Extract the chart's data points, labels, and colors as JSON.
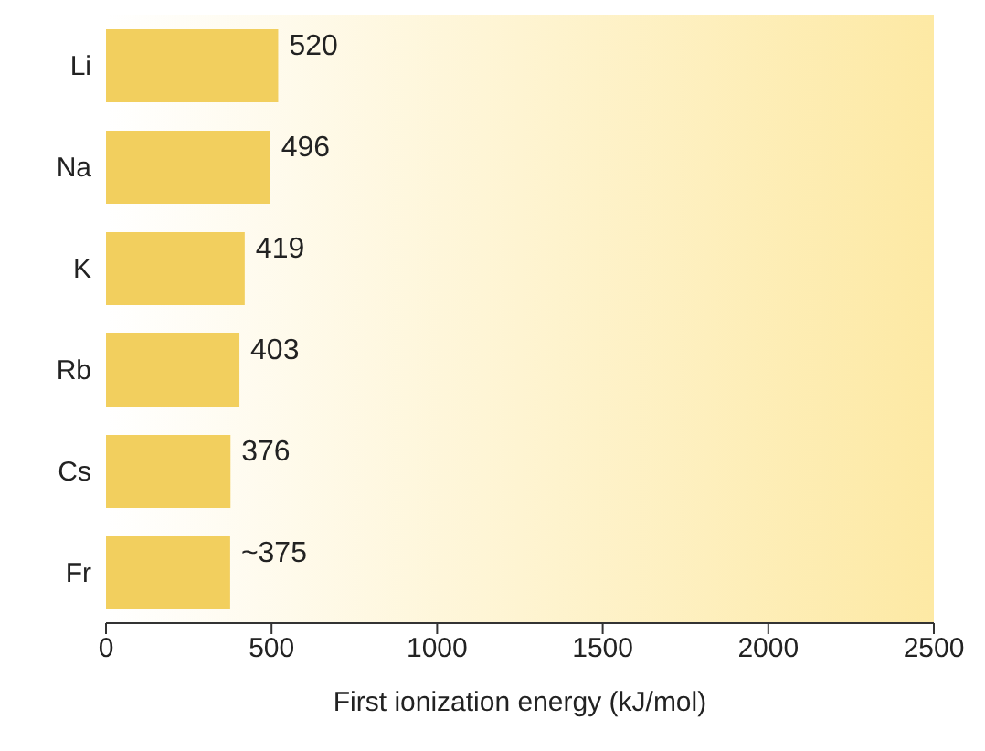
{
  "chart_data": {
    "type": "bar",
    "orientation": "horizontal",
    "xlabel": "First ionization energy (kJ/mol)",
    "categories": [
      "Li",
      "Na",
      "K",
      "Rb",
      "Cs",
      "Fr"
    ],
    "values": [
      520,
      496,
      419,
      403,
      376,
      375
    ],
    "value_labels": [
      "520",
      "496",
      "419",
      "403",
      "376",
      "~375"
    ],
    "color": "#f2cf5e",
    "xlim": [
      0,
      2500
    ],
    "xticks": [
      0,
      500,
      1000,
      1500,
      2000,
      2500
    ]
  }
}
